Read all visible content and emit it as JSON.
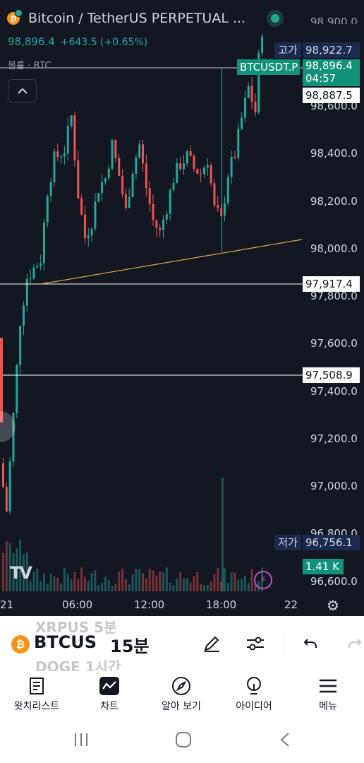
{
  "header": {
    "symbol_title": "Bitcoin / TetherUS PERPETUAL ...",
    "last_price": "98,896.4",
    "change": "+643.5 (+0.65%)",
    "volume_label": "볼륨 · BTC",
    "coin_glyph": "₿"
  },
  "chart_data": {
    "type": "candlestick",
    "y_ticks": [
      "98,600.0",
      "98,400.0",
      "98,200.0",
      "98,000.0",
      "97,800.0",
      "97,600.0",
      "97,400.0",
      "97,200.0",
      "97,000.0",
      "96,800.0",
      "96,600.0"
    ],
    "y_top_tick_partial": "98,900.0",
    "x_ticks": [
      "21",
      "06:00",
      "12:00",
      "18:00",
      "22"
    ],
    "ylim": [
      96560,
      98990
    ],
    "labels": {
      "high_tag": "고가",
      "high_value": "98,922.7",
      "symbol_tag": "BTCUSDT.P",
      "current_price": "98,896.4",
      "countdown": "04:57",
      "crosshair_price": "98,887.5",
      "line1_price": "97,917.4",
      "line2_price": "97,508.9",
      "low_tag": "저가",
      "low_value": "96,756.1",
      "volume_value": "1.41 K"
    },
    "horizontal_lines": [
      98887.5,
      97917.4,
      97508.9
    ],
    "trendline": {
      "from": {
        "x": "03:00",
        "y": 97917.4
      },
      "to": {
        "x": "23:00",
        "y": 98115
      }
    },
    "colors": {
      "up": "#26a69a",
      "down": "#ef5350",
      "trendline": "#d4a84b",
      "background": "#131722"
    }
  },
  "toolbar": {
    "symbol": "BTCUS",
    "interval": "15분",
    "ghost_prev": "XRPUS   5분",
    "ghost_next": "DOGE    1시간",
    "icons": [
      "pen-icon",
      "sliders-icon",
      "undo-icon",
      "redo-icon"
    ]
  },
  "bottom_nav": [
    {
      "label": "왓치리스트",
      "icon": "watchlist-icon"
    },
    {
      "label": "차트",
      "icon": "chart-icon"
    },
    {
      "label": "알아 보기",
      "icon": "compass-icon"
    },
    {
      "label": "아이디어",
      "icon": "idea-icon"
    },
    {
      "label": "메뉴",
      "icon": "menu-icon"
    }
  ]
}
